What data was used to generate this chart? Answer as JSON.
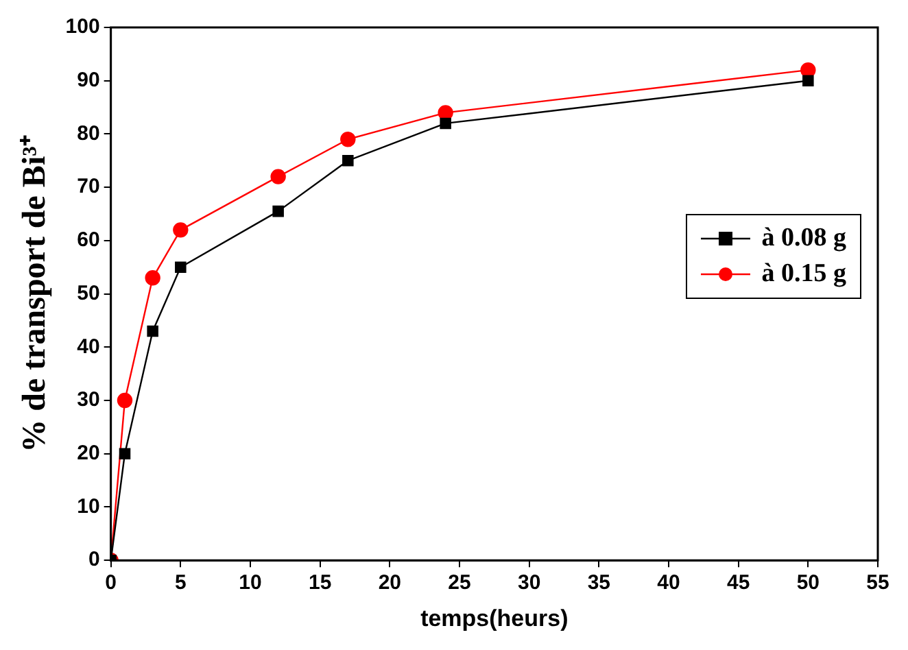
{
  "chart_data": {
    "type": "line",
    "xlabel": "temps(heurs)",
    "ylabel": "% de transport de Bi³⁺",
    "xlim": [
      0,
      55
    ],
    "xticks": [
      0,
      5,
      10,
      15,
      20,
      25,
      30,
      35,
      40,
      45,
      50,
      55
    ],
    "ylim": [
      0,
      100
    ],
    "yticks": [
      0,
      10,
      20,
      30,
      40,
      50,
      60,
      70,
      80,
      90,
      100
    ],
    "grid": false,
    "legend": "right",
    "line_style": "solid",
    "series": [
      {
        "name": "à 0.08 g",
        "color": "#000000",
        "marker": "square",
        "x": [
          0,
          1,
          3,
          5,
          12,
          17,
          24,
          50
        ],
        "values": [
          0,
          20,
          43,
          55,
          65.5,
          75,
          82,
          90
        ]
      },
      {
        "name": "à 0.15 g",
        "color": "#ff0000",
        "marker": "circle",
        "x": [
          0,
          1,
          3,
          5,
          12,
          17,
          24,
          50
        ],
        "values": [
          0,
          30,
          53,
          62,
          72,
          79,
          84,
          92
        ]
      }
    ]
  }
}
